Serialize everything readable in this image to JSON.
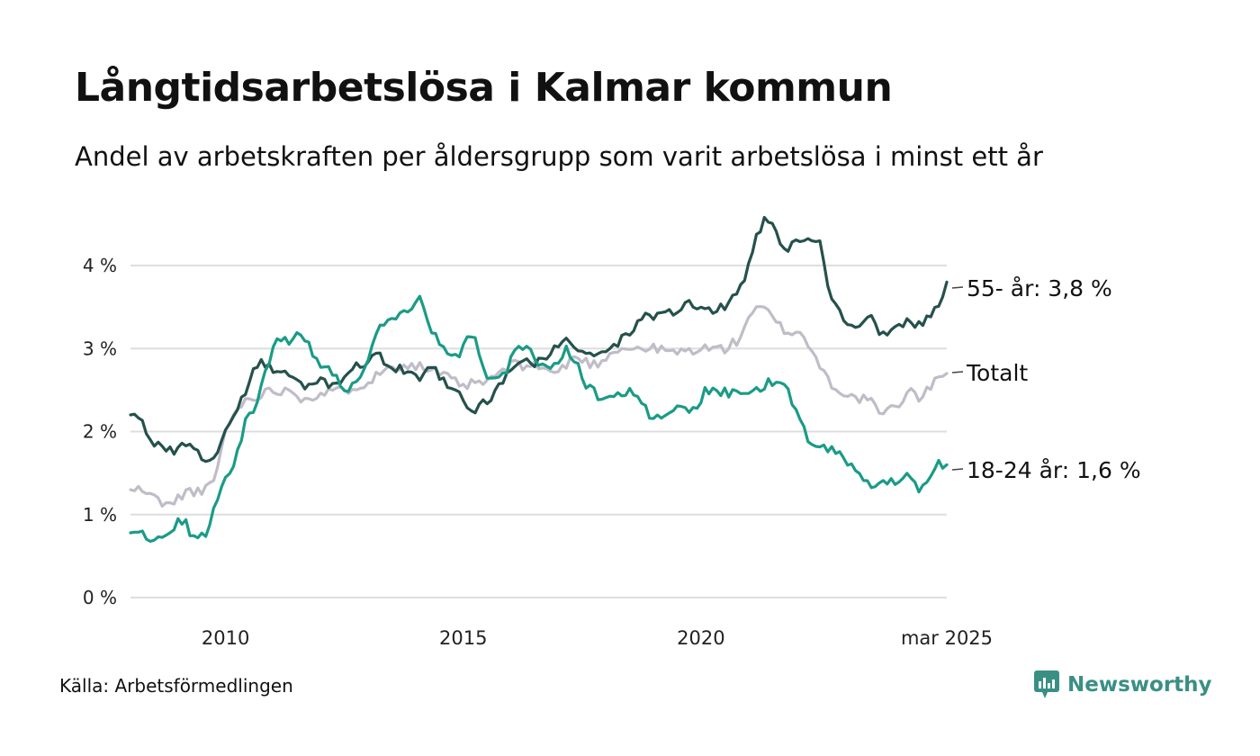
{
  "title": "Långtidsarbetslösa i Kalmar kommun",
  "subtitle": "Andel av arbetskraften per åldersgrupp som varit arbetslösa i minst ett år",
  "source": "Källa: Arbetsförmedlingen",
  "brand": {
    "name": "Newsworthy",
    "icon": "newsworthy-logo-icon",
    "color": "#3a8f85"
  },
  "chart_data": {
    "type": "line",
    "x_start": 2008.0,
    "x_end": 2025.17,
    "xlim": [
      2008.0,
      2025.17
    ],
    "ylim": [
      0,
      4.6
    ],
    "x_ticks": [
      {
        "x": 2010,
        "label": "2010"
      },
      {
        "x": 2015,
        "label": "2015"
      },
      {
        "x": 2020,
        "label": "2020"
      },
      {
        "x": 2025.17,
        "label": "mar 2025"
      }
    ],
    "y_ticks": [
      {
        "y": 0,
        "label": "0 %"
      },
      {
        "y": 1,
        "label": "1 %"
      },
      {
        "y": 2,
        "label": "2 %"
      },
      {
        "y": 3,
        "label": "3 %"
      },
      {
        "y": 4,
        "label": "4 %"
      }
    ],
    "grid": true,
    "series": [
      {
        "name": "Totalt",
        "end_label": "Totalt",
        "color": "#c0bcc8",
        "anchors": [
          [
            2008.0,
            1.3
          ],
          [
            2008.25,
            1.3
          ],
          [
            2008.5,
            1.2
          ],
          [
            2008.85,
            1.1
          ],
          [
            2009.0,
            1.2
          ],
          [
            2009.25,
            1.3
          ],
          [
            2009.5,
            1.25
          ],
          [
            2009.75,
            1.4
          ],
          [
            2010.0,
            2.0
          ],
          [
            2010.25,
            2.3
          ],
          [
            2010.5,
            2.4
          ],
          [
            2011.0,
            2.5
          ],
          [
            2011.4,
            2.5
          ],
          [
            2011.6,
            2.4
          ],
          [
            2012.0,
            2.45
          ],
          [
            2012.5,
            2.5
          ],
          [
            2013.0,
            2.6
          ],
          [
            2013.5,
            2.8
          ],
          [
            2014.0,
            2.8
          ],
          [
            2014.5,
            2.7
          ],
          [
            2014.8,
            2.6
          ],
          [
            2015.0,
            2.55
          ],
          [
            2015.5,
            2.6
          ],
          [
            2016.0,
            2.8
          ],
          [
            2016.5,
            2.8
          ],
          [
            2017.0,
            2.7
          ],
          [
            2017.3,
            2.9
          ],
          [
            2017.8,
            2.8
          ],
          [
            2018.2,
            3.0
          ],
          [
            2018.7,
            3.0
          ],
          [
            2019.0,
            3.0
          ],
          [
            2019.5,
            2.95
          ],
          [
            2020.0,
            3.0
          ],
          [
            2020.5,
            3.0
          ],
          [
            2020.8,
            3.1
          ],
          [
            2021.0,
            3.4
          ],
          [
            2021.3,
            3.5
          ],
          [
            2021.6,
            3.3
          ],
          [
            2021.8,
            3.2
          ],
          [
            2022.1,
            3.2
          ],
          [
            2022.4,
            2.9
          ],
          [
            2022.7,
            2.6
          ],
          [
            2022.9,
            2.5
          ],
          [
            2023.2,
            2.4
          ],
          [
            2023.5,
            2.4
          ],
          [
            2023.8,
            2.2
          ],
          [
            2024.1,
            2.3
          ],
          [
            2024.4,
            2.5
          ],
          [
            2024.6,
            2.4
          ],
          [
            2024.8,
            2.5
          ],
          [
            2025.0,
            2.7
          ],
          [
            2025.17,
            2.7
          ]
        ]
      },
      {
        "name": "55- år",
        "end_label": "55- år: 3,8 %",
        "color": "#25514c",
        "anchors": [
          [
            2008.0,
            2.2
          ],
          [
            2008.2,
            2.15
          ],
          [
            2008.45,
            1.9
          ],
          [
            2008.7,
            1.75
          ],
          [
            2009.0,
            1.8
          ],
          [
            2009.3,
            1.85
          ],
          [
            2009.6,
            1.65
          ],
          [
            2009.8,
            1.7
          ],
          [
            2010.0,
            2.0
          ],
          [
            2010.2,
            2.25
          ],
          [
            2010.4,
            2.45
          ],
          [
            2010.6,
            2.75
          ],
          [
            2010.8,
            2.85
          ],
          [
            2011.0,
            2.7
          ],
          [
            2011.3,
            2.7
          ],
          [
            2011.6,
            2.55
          ],
          [
            2012.0,
            2.6
          ],
          [
            2012.3,
            2.55
          ],
          [
            2012.6,
            2.75
          ],
          [
            2013.0,
            2.8
          ],
          [
            2013.2,
            2.95
          ],
          [
            2013.5,
            2.75
          ],
          [
            2013.8,
            2.75
          ],
          [
            2014.1,
            2.65
          ],
          [
            2014.35,
            2.8
          ],
          [
            2014.6,
            2.6
          ],
          [
            2014.85,
            2.55
          ],
          [
            2015.1,
            2.25
          ],
          [
            2015.35,
            2.3
          ],
          [
            2015.6,
            2.4
          ],
          [
            2015.9,
            2.7
          ],
          [
            2016.2,
            2.85
          ],
          [
            2016.5,
            2.8
          ],
          [
            2016.8,
            2.9
          ],
          [
            2017.1,
            3.1
          ],
          [
            2017.4,
            3.0
          ],
          [
            2017.7,
            2.95
          ],
          [
            2018.0,
            2.95
          ],
          [
            2018.3,
            3.1
          ],
          [
            2018.6,
            3.25
          ],
          [
            2018.9,
            3.4
          ],
          [
            2019.2,
            3.4
          ],
          [
            2019.5,
            3.45
          ],
          [
            2019.7,
            3.6
          ],
          [
            2019.9,
            3.5
          ],
          [
            2020.2,
            3.45
          ],
          [
            2020.5,
            3.5
          ],
          [
            2020.8,
            3.7
          ],
          [
            2021.0,
            4.0
          ],
          [
            2021.2,
            4.4
          ],
          [
            2021.4,
            4.6
          ],
          [
            2021.6,
            4.35
          ],
          [
            2021.8,
            4.2
          ],
          [
            2022.0,
            4.35
          ],
          [
            2022.2,
            4.3
          ],
          [
            2022.5,
            4.25
          ],
          [
            2022.7,
            3.7
          ],
          [
            2022.9,
            3.45
          ],
          [
            2023.1,
            3.3
          ],
          [
            2023.4,
            3.3
          ],
          [
            2023.6,
            3.35
          ],
          [
            2023.8,
            3.15
          ],
          [
            2024.0,
            3.2
          ],
          [
            2024.3,
            3.3
          ],
          [
            2024.6,
            3.3
          ],
          [
            2024.85,
            3.4
          ],
          [
            2025.0,
            3.55
          ],
          [
            2025.17,
            3.8
          ]
        ]
      },
      {
        "name": "18-24 år",
        "end_label": "18-24 år: 1,6 %",
        "color": "#1a9b87",
        "anchors": [
          [
            2008.0,
            0.78
          ],
          [
            2008.15,
            0.85
          ],
          [
            2008.3,
            0.75
          ],
          [
            2008.45,
            0.65
          ],
          [
            2008.65,
            0.72
          ],
          [
            2008.9,
            0.85
          ],
          [
            2009.1,
            0.95
          ],
          [
            2009.35,
            0.7
          ],
          [
            2009.6,
            0.8
          ],
          [
            2009.8,
            1.2
          ],
          [
            2010.0,
            1.4
          ],
          [
            2010.2,
            1.65
          ],
          [
            2010.4,
            2.1
          ],
          [
            2010.6,
            2.3
          ],
          [
            2010.8,
            2.6
          ],
          [
            2011.0,
            3.05
          ],
          [
            2011.3,
            3.1
          ],
          [
            2011.6,
            3.2
          ],
          [
            2011.8,
            3.0
          ],
          [
            2012.0,
            2.8
          ],
          [
            2012.2,
            2.75
          ],
          [
            2012.4,
            2.6
          ],
          [
            2012.6,
            2.5
          ],
          [
            2012.8,
            2.6
          ],
          [
            2013.0,
            2.9
          ],
          [
            2013.3,
            3.3
          ],
          [
            2013.6,
            3.35
          ],
          [
            2013.9,
            3.45
          ],
          [
            2014.1,
            3.6
          ],
          [
            2014.35,
            3.2
          ],
          [
            2014.6,
            2.95
          ],
          [
            2014.85,
            2.9
          ],
          [
            2015.0,
            3.0
          ],
          [
            2015.2,
            3.2
          ],
          [
            2015.45,
            2.7
          ],
          [
            2015.7,
            2.65
          ],
          [
            2015.9,
            2.7
          ],
          [
            2016.1,
            3.05
          ],
          [
            2016.35,
            3.0
          ],
          [
            2016.6,
            2.8
          ],
          [
            2016.9,
            2.8
          ],
          [
            2017.15,
            3.0
          ],
          [
            2017.4,
            2.8
          ],
          [
            2017.6,
            2.55
          ],
          [
            2017.8,
            2.45
          ],
          [
            2018.0,
            2.4
          ],
          [
            2018.3,
            2.45
          ],
          [
            2018.5,
            2.5
          ],
          [
            2018.8,
            2.3
          ],
          [
            2019.0,
            2.15
          ],
          [
            2019.3,
            2.25
          ],
          [
            2019.6,
            2.3
          ],
          [
            2019.85,
            2.25
          ],
          [
            2020.1,
            2.5
          ],
          [
            2020.35,
            2.5
          ],
          [
            2020.6,
            2.45
          ],
          [
            2020.8,
            2.45
          ],
          [
            2021.0,
            2.4
          ],
          [
            2021.3,
            2.55
          ],
          [
            2021.5,
            2.6
          ],
          [
            2021.7,
            2.65
          ],
          [
            2021.85,
            2.45
          ],
          [
            2022.0,
            2.3
          ],
          [
            2022.2,
            1.95
          ],
          [
            2022.4,
            1.8
          ],
          [
            2022.6,
            1.8
          ],
          [
            2022.8,
            1.75
          ],
          [
            2023.0,
            1.7
          ],
          [
            2023.2,
            1.55
          ],
          [
            2023.4,
            1.45
          ],
          [
            2023.6,
            1.35
          ],
          [
            2023.8,
            1.35
          ],
          [
            2024.0,
            1.4
          ],
          [
            2024.2,
            1.45
          ],
          [
            2024.4,
            1.45
          ],
          [
            2024.6,
            1.3
          ],
          [
            2024.8,
            1.45
          ],
          [
            2025.0,
            1.6
          ],
          [
            2025.17,
            1.6
          ]
        ]
      }
    ]
  }
}
